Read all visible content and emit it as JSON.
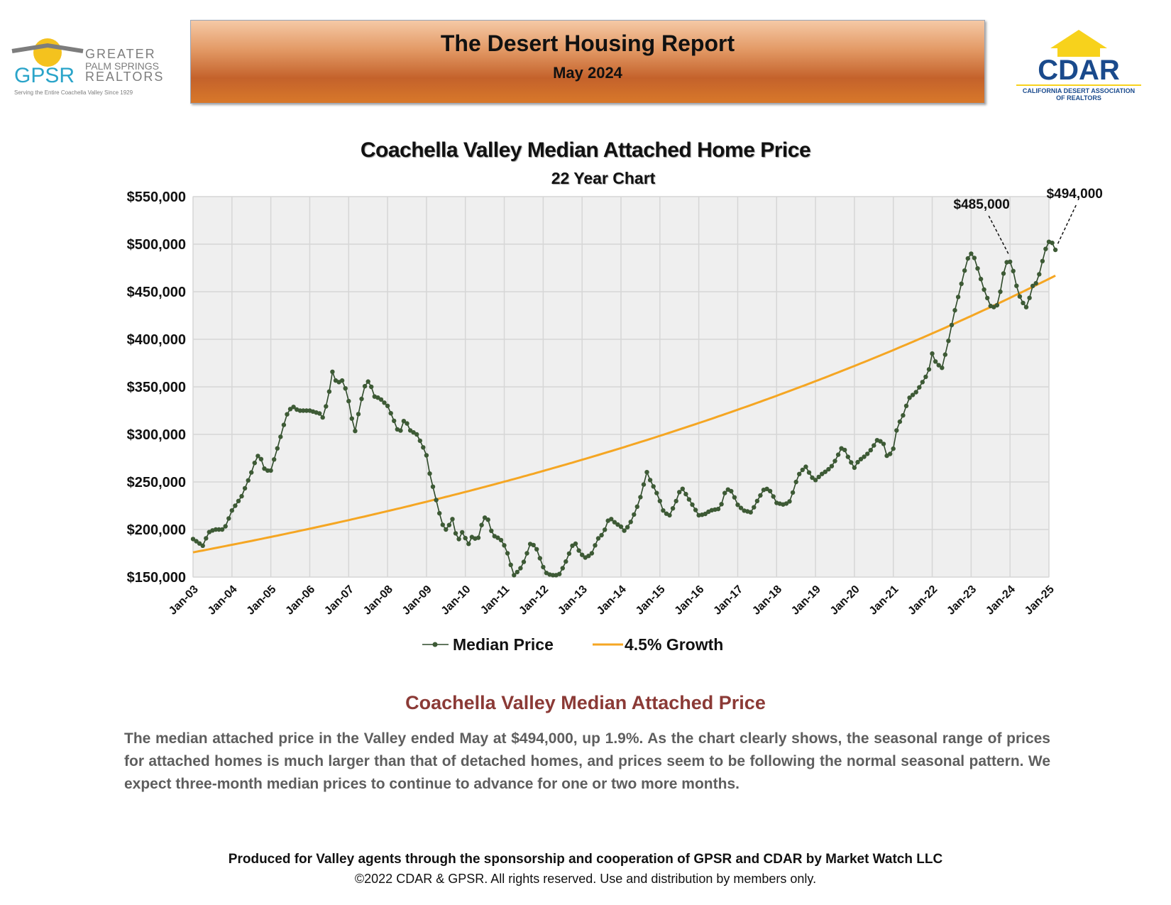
{
  "header": {
    "title": "The Desert Housing Report",
    "subtitle": "May 2024"
  },
  "logos": {
    "gpsr": {
      "acronym": "GPSR",
      "line1": "GREATER",
      "line2": "PALM SPRINGS",
      "line3": "REALTORS",
      "tagline": "Serving the Entire Coachella Valley Since 1929"
    },
    "cdar": {
      "acronym": "CDAR",
      "line1": "CALIFORNIA DESERT ASSOCIATION",
      "line2": "OF REALTORS"
    }
  },
  "chart_data": {
    "type": "line",
    "title": "Coachella Valley Median Attached Home Price",
    "subtitle": "22 Year Chart",
    "xlabel": "",
    "ylabel": "",
    "x_ticks": [
      "Jan-03",
      "Jan-04",
      "Jan-05",
      "Jan-06",
      "Jan-07",
      "Jan-08",
      "Jan-09",
      "Jan-10",
      "Jan-11",
      "Jan-12",
      "Jan-13",
      "Jan-14",
      "Jan-15",
      "Jan-16",
      "Jan-17",
      "Jan-18",
      "Jan-19",
      "Jan-20",
      "Jan-21",
      "Jan-22",
      "Jan-23",
      "Jan-24",
      "Jan-25"
    ],
    "y_ticks": [
      "$150,000",
      "$200,000",
      "$250,000",
      "$300,000",
      "$350,000",
      "$400,000",
      "$450,000",
      "$500,000",
      "$550,000"
    ],
    "ylim": [
      150000,
      550000
    ],
    "xlim_years": [
      2003,
      2025
    ],
    "grid": true,
    "legend_position": "bottom",
    "series": [
      {
        "name": "Median Price",
        "color": "#2f4a2a",
        "marker": "circle",
        "anchors": [
          [
            2003.0,
            190000
          ],
          [
            2003.25,
            183000
          ],
          [
            2003.4,
            197000
          ],
          [
            2003.55,
            200000
          ],
          [
            2003.8,
            200000
          ],
          [
            2004.0,
            220000
          ],
          [
            2004.25,
            235000
          ],
          [
            2004.5,
            260000
          ],
          [
            2004.6,
            272000
          ],
          [
            2004.7,
            280000
          ],
          [
            2004.85,
            262000
          ],
          [
            2005.0,
            262000
          ],
          [
            2005.2,
            290000
          ],
          [
            2005.4,
            320000
          ],
          [
            2005.55,
            330000
          ],
          [
            2005.7,
            325000
          ],
          [
            2006.0,
            325000
          ],
          [
            2006.25,
            322000
          ],
          [
            2006.35,
            317000
          ],
          [
            2006.5,
            345000
          ],
          [
            2006.6,
            370000
          ],
          [
            2006.7,
            350000
          ],
          [
            2006.8,
            360000
          ],
          [
            2006.95,
            345000
          ],
          [
            2007.05,
            325000
          ],
          [
            2007.15,
            300000
          ],
          [
            2007.3,
            332000
          ],
          [
            2007.45,
            356000
          ],
          [
            2007.55,
            355000
          ],
          [
            2007.65,
            340000
          ],
          [
            2007.8,
            338000
          ],
          [
            2008.0,
            330000
          ],
          [
            2008.15,
            316000
          ],
          [
            2008.3,
            300000
          ],
          [
            2008.45,
            318000
          ],
          [
            2008.55,
            305000
          ],
          [
            2008.75,
            300000
          ],
          [
            2008.9,
            288000
          ],
          [
            2009.0,
            278000
          ],
          [
            2009.1,
            255000
          ],
          [
            2009.2,
            240000
          ],
          [
            2009.3,
            222000
          ],
          [
            2009.45,
            200000
          ],
          [
            2009.55,
            200000
          ],
          [
            2009.65,
            214000
          ],
          [
            2009.8,
            187000
          ],
          [
            2009.95,
            200000
          ],
          [
            2010.05,
            182000
          ],
          [
            2010.2,
            195000
          ],
          [
            2010.3,
            186000
          ],
          [
            2010.45,
            210000
          ],
          [
            2010.55,
            215000
          ],
          [
            2010.7,
            194000
          ],
          [
            2010.9,
            190000
          ],
          [
            2011.05,
            180000
          ],
          [
            2011.15,
            165000
          ],
          [
            2011.25,
            152000
          ],
          [
            2011.4,
            158000
          ],
          [
            2011.55,
            170000
          ],
          [
            2011.65,
            185000
          ],
          [
            2011.8,
            183000
          ],
          [
            2011.95,
            166000
          ],
          [
            2012.05,
            155000
          ],
          [
            2012.2,
            152000
          ],
          [
            2012.4,
            152000
          ],
          [
            2012.55,
            163000
          ],
          [
            2012.7,
            178000
          ],
          [
            2012.8,
            188000
          ],
          [
            2012.95,
            175000
          ],
          [
            2013.1,
            170000
          ],
          [
            2013.25,
            175000
          ],
          [
            2013.4,
            190000
          ],
          [
            2013.55,
            196000
          ],
          [
            2013.7,
            213000
          ],
          [
            2013.85,
            207000
          ],
          [
            2014.0,
            203000
          ],
          [
            2014.1,
            198000
          ],
          [
            2014.25,
            208000
          ],
          [
            2014.4,
            222000
          ],
          [
            2014.55,
            240000
          ],
          [
            2014.65,
            262000
          ],
          [
            2014.75,
            252000
          ],
          [
            2014.9,
            240000
          ],
          [
            2015.0,
            230000
          ],
          [
            2015.1,
            218000
          ],
          [
            2015.25,
            215000
          ],
          [
            2015.4,
            228000
          ],
          [
            2015.55,
            245000
          ],
          [
            2015.7,
            235000
          ],
          [
            2015.85,
            225000
          ],
          [
            2016.0,
            215000
          ],
          [
            2016.15,
            216000
          ],
          [
            2016.3,
            220000
          ],
          [
            2016.55,
            222000
          ],
          [
            2016.7,
            243000
          ],
          [
            2016.85,
            240000
          ],
          [
            2017.0,
            226000
          ],
          [
            2017.15,
            220000
          ],
          [
            2017.35,
            218000
          ],
          [
            2017.5,
            230000
          ],
          [
            2017.7,
            244000
          ],
          [
            2017.85,
            240000
          ],
          [
            2018.0,
            228000
          ],
          [
            2018.2,
            226000
          ],
          [
            2018.35,
            230000
          ],
          [
            2018.5,
            250000
          ],
          [
            2018.6,
            260000
          ],
          [
            2018.75,
            266000
          ],
          [
            2018.9,
            255000
          ],
          [
            2019.0,
            252000
          ],
          [
            2019.15,
            258000
          ],
          [
            2019.3,
            262000
          ],
          [
            2019.45,
            268000
          ],
          [
            2019.6,
            280000
          ],
          [
            2019.7,
            288000
          ],
          [
            2019.85,
            275000
          ],
          [
            2020.0,
            265000
          ],
          [
            2020.1,
            272000
          ],
          [
            2020.3,
            278000
          ],
          [
            2020.45,
            285000
          ],
          [
            2020.6,
            295000
          ],
          [
            2020.75,
            290000
          ],
          [
            2020.85,
            275000
          ],
          [
            2021.0,
            285000
          ],
          [
            2021.1,
            308000
          ],
          [
            2021.25,
            320000
          ],
          [
            2021.4,
            338000
          ],
          [
            2021.6,
            345000
          ],
          [
            2021.75,
            355000
          ],
          [
            2021.9,
            365000
          ],
          [
            2022.0,
            385000
          ],
          [
            2022.1,
            375000
          ],
          [
            2022.25,
            370000
          ],
          [
            2022.4,
            395000
          ],
          [
            2022.55,
            425000
          ],
          [
            2022.7,
            450000
          ],
          [
            2022.85,
            475000
          ],
          [
            2022.95,
            490000
          ],
          [
            2023.05,
            490000
          ],
          [
            2023.2,
            470000
          ],
          [
            2023.35,
            450000
          ],
          [
            2023.5,
            435000
          ],
          [
            2023.65,
            433000
          ],
          [
            2023.75,
            450000
          ],
          [
            2023.85,
            473000
          ],
          [
            2023.95,
            485000
          ],
          [
            2024.05,
            478000
          ],
          [
            2024.2,
            450000
          ],
          [
            2024.3,
            440000
          ],
          [
            2024.45,
            432000
          ],
          [
            2024.55,
            455000
          ],
          [
            2024.7,
            460000
          ],
          [
            2024.85,
            485000
          ],
          [
            2024.95,
            500000
          ],
          [
            2025.05,
            505000
          ],
          [
            2025.15,
            494000
          ]
        ]
      },
      {
        "name": "4.5% Growth",
        "color": "#f5a623",
        "start": [
          2003.0,
          176000
        ],
        "annual_growth_rate": 0.045,
        "end_x": 2025.2
      }
    ],
    "annotations": [
      {
        "label": "$485,000",
        "x": 2024.0,
        "y": 485000
      },
      {
        "label": "$494,000",
        "x": 2025.15,
        "y": 494000
      }
    ]
  },
  "commentary": {
    "title": "Coachella Valley Median Attached Price",
    "text": "The median attached price in the Valley ended May at $494,000, up 1.9%. As the chart clearly shows, the seasonal range of prices for attached homes is much larger than that of detached homes, and prices seem to be following the normal seasonal pattern. We expect three-month median prices to continue to advance for one or two more months."
  },
  "footer": {
    "main": "Produced for Valley agents through the sponsorship and cooperation of GPSR and CDAR by Market Watch LLC",
    "copyright": "©2022 CDAR & GPSR.  All rights reserved.  Use and distribution by members only."
  }
}
